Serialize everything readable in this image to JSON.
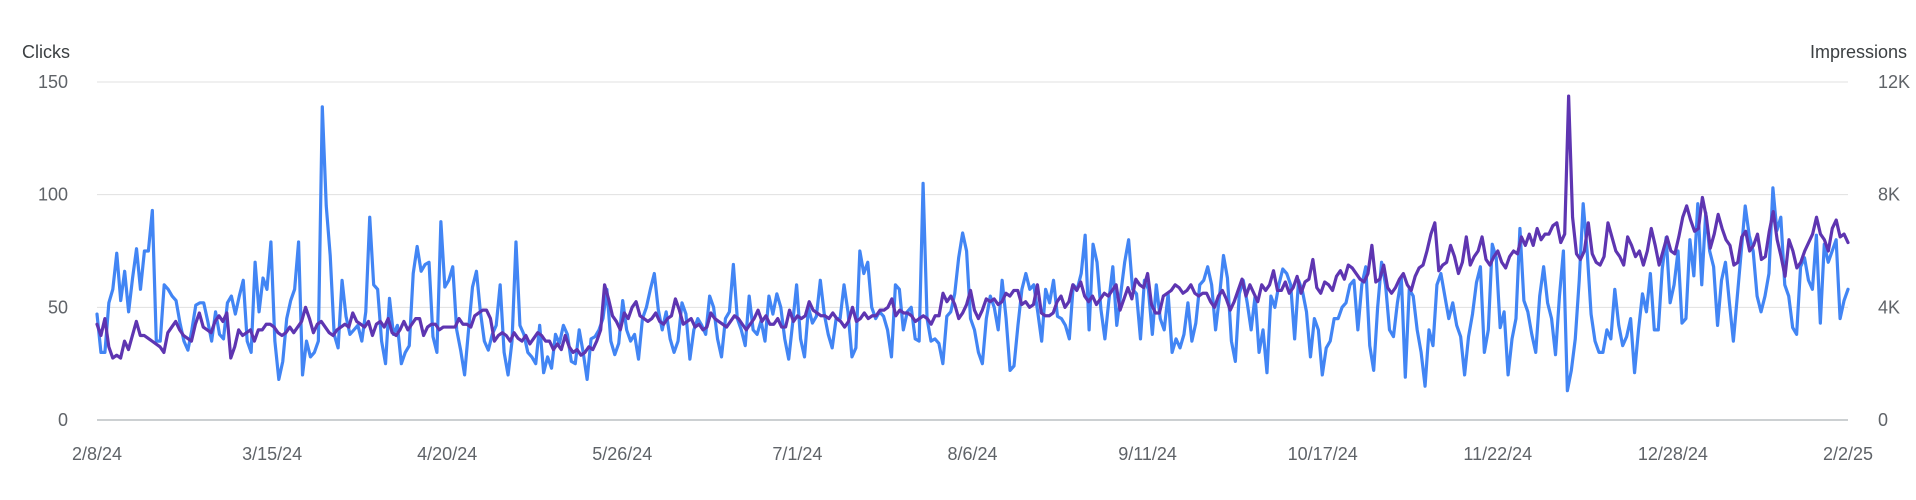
{
  "chart_data": {
    "type": "line",
    "left_axis": {
      "title": "Clicks",
      "ticks": [
        0,
        50,
        100,
        150
      ],
      "tick_labels": [
        "0",
        "50",
        "100",
        "150"
      ],
      "ylim": [
        0,
        150
      ]
    },
    "right_axis": {
      "title": "Impressions",
      "ticks": [
        0,
        4000,
        8000,
        12000
      ],
      "tick_labels": [
        "0",
        "4K",
        "8K",
        "12K"
      ],
      "ylim": [
        0,
        12000
      ]
    },
    "x_axis": {
      "start": "2/8/24",
      "end": "2/2/25",
      "tick_labels": [
        "2/8/24",
        "3/15/24",
        "4/20/24",
        "5/26/24",
        "7/1/24",
        "8/6/24",
        "9/11/24",
        "10/17/24",
        "11/22/24",
        "12/28/24",
        "2/2/25"
      ]
    },
    "grid": true,
    "series": [
      {
        "axis": "left",
        "color": "#4285f4",
        "values": [
          47,
          30,
          30,
          52,
          58,
          74,
          53,
          66,
          48,
          63,
          76,
          58,
          75,
          75,
          93,
          35,
          35,
          60,
          58,
          55,
          53,
          43,
          35,
          31,
          40,
          51,
          52,
          52,
          44,
          35,
          48,
          38,
          36,
          52,
          55,
          47,
          55,
          62,
          35,
          30,
          70,
          48,
          63,
          58,
          79,
          35,
          18,
          26,
          45,
          53,
          58,
          79,
          20,
          35,
          28,
          30,
          35,
          139,
          95,
          73,
          38,
          32,
          62,
          46,
          38,
          40,
          42,
          35,
          48,
          90,
          60,
          58,
          35,
          25,
          54,
          38,
          42,
          25,
          30,
          33,
          65,
          77,
          66,
          69,
          70,
          37,
          30,
          88,
          59,
          62,
          68,
          40,
          31,
          20,
          40,
          59,
          66,
          48,
          35,
          31,
          38,
          42,
          60,
          30,
          20,
          35,
          79,
          42,
          38,
          30,
          28,
          25,
          42,
          21,
          28,
          23,
          38,
          34,
          42,
          38,
          26,
          25,
          40,
          30,
          18,
          36,
          37,
          40,
          45,
          58,
          35,
          29,
          34,
          53,
          40,
          35,
          38,
          27,
          45,
          50,
          58,
          65,
          49,
          40,
          48,
          36,
          30,
          35,
          52,
          47,
          27,
          40,
          45,
          42,
          38,
          55,
          50,
          36,
          28,
          45,
          48,
          69,
          45,
          40,
          33,
          55,
          40,
          38,
          44,
          35,
          55,
          47,
          56,
          50,
          36,
          27,
          43,
          60,
          36,
          28,
          50,
          43,
          46,
          62,
          47,
          38,
          32,
          45,
          45,
          60,
          48,
          28,
          32,
          75,
          65,
          70,
          50,
          45,
          48,
          46,
          40,
          28,
          60,
          58,
          40,
          48,
          50,
          36,
          35,
          105,
          45,
          35,
          36,
          34,
          25,
          46,
          48,
          56,
          72,
          83,
          75,
          45,
          40,
          30,
          25,
          45,
          55,
          50,
          40,
          62,
          45,
          22,
          24,
          42,
          58,
          65,
          58,
          60,
          48,
          35,
          58,
          52,
          62,
          46,
          45,
          42,
          36,
          60,
          58,
          65,
          82,
          40,
          78,
          70,
          49,
          36,
          53,
          68,
          42,
          56,
          70,
          80,
          58,
          56,
          36,
          62,
          58,
          38,
          60,
          45,
          40,
          56,
          30,
          36,
          32,
          38,
          52,
          35,
          43,
          60,
          62,
          68,
          60,
          40,
          55,
          73,
          63,
          35,
          26,
          56,
          62,
          52,
          40,
          55,
          30,
          40,
          21,
          55,
          50,
          60,
          67,
          65,
          60,
          36,
          62,
          57,
          48,
          28,
          45,
          40,
          20,
          32,
          35,
          45,
          45,
          50,
          52,
          60,
          62,
          40,
          60,
          68,
          33,
          22,
          50,
          70,
          60,
          40,
          37,
          52,
          63,
          19,
          58,
          55,
          40,
          30,
          15,
          40,
          33,
          60,
          65,
          55,
          45,
          52,
          42,
          37,
          20,
          37,
          47,
          61,
          68,
          30,
          40,
          78,
          72,
          41,
          48,
          20,
          36,
          45,
          85,
          53,
          48,
          38,
          30,
          55,
          68,
          52,
          45,
          29,
          55,
          75,
          13,
          22,
          36,
          62,
          96,
          75,
          47,
          35,
          30,
          30,
          40,
          36,
          58,
          42,
          33,
          37,
          45,
          21,
          40,
          56,
          48,
          65,
          40,
          40,
          67,
          81,
          52,
          60,
          75,
          43,
          45,
          80,
          64,
          96,
          60,
          92,
          75,
          68,
          42,
          62,
          70,
          52,
          35,
          55,
          75,
          95,
          82,
          75,
          55,
          48,
          55,
          65,
          103,
          84,
          90,
          60,
          55,
          41,
          38,
          68,
          72,
          62,
          58,
          82,
          43,
          78,
          70,
          75,
          80,
          45,
          53,
          58
        ]
      },
      {
        "axis": "right",
        "color": "#5e35b1",
        "values": [
          3400,
          3000,
          3600,
          2600,
          2200,
          2300,
          2200,
          2800,
          2500,
          3000,
          3500,
          3000,
          3000,
          2900,
          2800,
          2700,
          2600,
          2400,
          3100,
          3300,
          3500,
          3200,
          3000,
          2900,
          2800,
          3400,
          3800,
          3300,
          3200,
          3100,
          3500,
          3700,
          3500,
          3800,
          2200,
          2600,
          3200,
          3000,
          3100,
          3200,
          2800,
          3200,
          3200,
          3400,
          3400,
          3300,
          3100,
          3000,
          3100,
          3300,
          3100,
          3300,
          3500,
          4000,
          3600,
          3100,
          3400,
          3500,
          3300,
          3100,
          3000,
          3200,
          3300,
          3400,
          3300,
          3800,
          3500,
          3400,
          3300,
          3500,
          3000,
          3400,
          3500,
          3300,
          3600,
          3100,
          3000,
          3200,
          3500,
          3200,
          3400,
          3600,
          3600,
          3000,
          3300,
          3400,
          3400,
          3200,
          3300,
          3300,
          3300,
          3300,
          3600,
          3400,
          3400,
          3300,
          3700,
          3800,
          3900,
          3900,
          3600,
          2800,
          3000,
          3100,
          3000,
          2800,
          3100,
          2900,
          2800,
          3000,
          2700,
          2900,
          3100,
          3000,
          2800,
          2800,
          2500,
          2700,
          2500,
          3000,
          2600,
          2400,
          2500,
          2300,
          2400,
          2600,
          2500,
          2800,
          3200,
          4800,
          4300,
          3700,
          3500,
          3200,
          3800,
          3600,
          4000,
          4200,
          3700,
          3600,
          3500,
          3600,
          3800,
          3500,
          3400,
          3600,
          3700,
          4300,
          3900,
          3400,
          3500,
          3600,
          3300,
          3400,
          3200,
          3300,
          3800,
          3600,
          3500,
          3400,
          3300,
          3500,
          3700,
          3600,
          3400,
          3200,
          3400,
          3600,
          3900,
          3500,
          3700,
          3400,
          3400,
          3600,
          3300,
          3300,
          3900,
          3500,
          3700,
          3600,
          3700,
          4200,
          3900,
          3800,
          3700,
          3700,
          3600,
          3800,
          3600,
          3500,
          3300,
          3500,
          4000,
          3500,
          3600,
          3800,
          3600,
          3700,
          3700,
          3900,
          3900,
          4000,
          4300,
          3700,
          3900,
          3800,
          3800,
          3700,
          3500,
          3600,
          3700,
          3600,
          3400,
          3700,
          3700,
          4500,
          4200,
          4400,
          4100,
          3600,
          3800,
          4100,
          4600,
          3900,
          3600,
          3900,
          4300,
          4200,
          4300,
          4100,
          4200,
          4500,
          4400,
          4600,
          4600,
          4100,
          4200,
          4000,
          4100,
          4800,
          3800,
          3700,
          3700,
          3800,
          4200,
          4400,
          4000,
          4200,
          4800,
          4600,
          4900,
          4400,
          4200,
          4400,
          4100,
          4300,
          4500,
          4400,
          4600,
          4800,
          3900,
          4300,
          4700,
          4300,
          5000,
          4800,
          4700,
          5200,
          4100,
          3800,
          3800,
          4400,
          4500,
          4600,
          4800,
          4700,
          4500,
          4600,
          4800,
          4500,
          4400,
          4500,
          4500,
          4200,
          4000,
          4400,
          4600,
          4300,
          3900,
          4200,
          4600,
          5000,
          4400,
          4800,
          4500,
          4200,
          4800,
          4600,
          4800,
          5300,
          4600,
          4600,
          4900,
          4500,
          4700,
          5100,
          4500,
          4900,
          5000,
          5700,
          4700,
          4500,
          4900,
          4800,
          4600,
          5100,
          5300,
          5000,
          5500,
          5400,
          5200,
          5000,
          4900,
          5200,
          6200,
          4900,
          5000,
          5500,
          4700,
          4500,
          4700,
          5000,
          5200,
          4800,
          4600,
          5100,
          5400,
          5500,
          6000,
          6600,
          7000,
          5300,
          5500,
          5600,
          6200,
          5800,
          5200,
          5600,
          6500,
          5500,
          5800,
          6000,
          6500,
          5700,
          5500,
          5800,
          6000,
          5600,
          5400,
          5800,
          6000,
          5900,
          6500,
          6200,
          6600,
          6200,
          6800,
          6400,
          6600,
          6600,
          6900,
          7000,
          6300,
          6600,
          11500,
          7200,
          5900,
          5700,
          6000,
          7000,
          5900,
          5600,
          5500,
          5800,
          7000,
          6500,
          6000,
          5800,
          5500,
          6500,
          6200,
          5800,
          6000,
          5500,
          6000,
          6800,
          6200,
          5500,
          6000,
          6500,
          6000,
          5900,
          6500,
          7200,
          7600,
          7100,
          6700,
          6800,
          7900,
          7200,
          6100,
          6600,
          7300,
          6800,
          6400,
          6200,
          5500,
          5600,
          6500,
          6700,
          6000,
          6200,
          6600,
          5700,
          5800,
          6700,
          7400,
          6400,
          5800,
          5100,
          6400,
          6000,
          5400,
          5600,
          6000,
          6300,
          6600,
          7200,
          6600,
          6400,
          6000,
          6800,
          7100,
          6500,
          6600,
          6300
        ]
      }
    ]
  }
}
